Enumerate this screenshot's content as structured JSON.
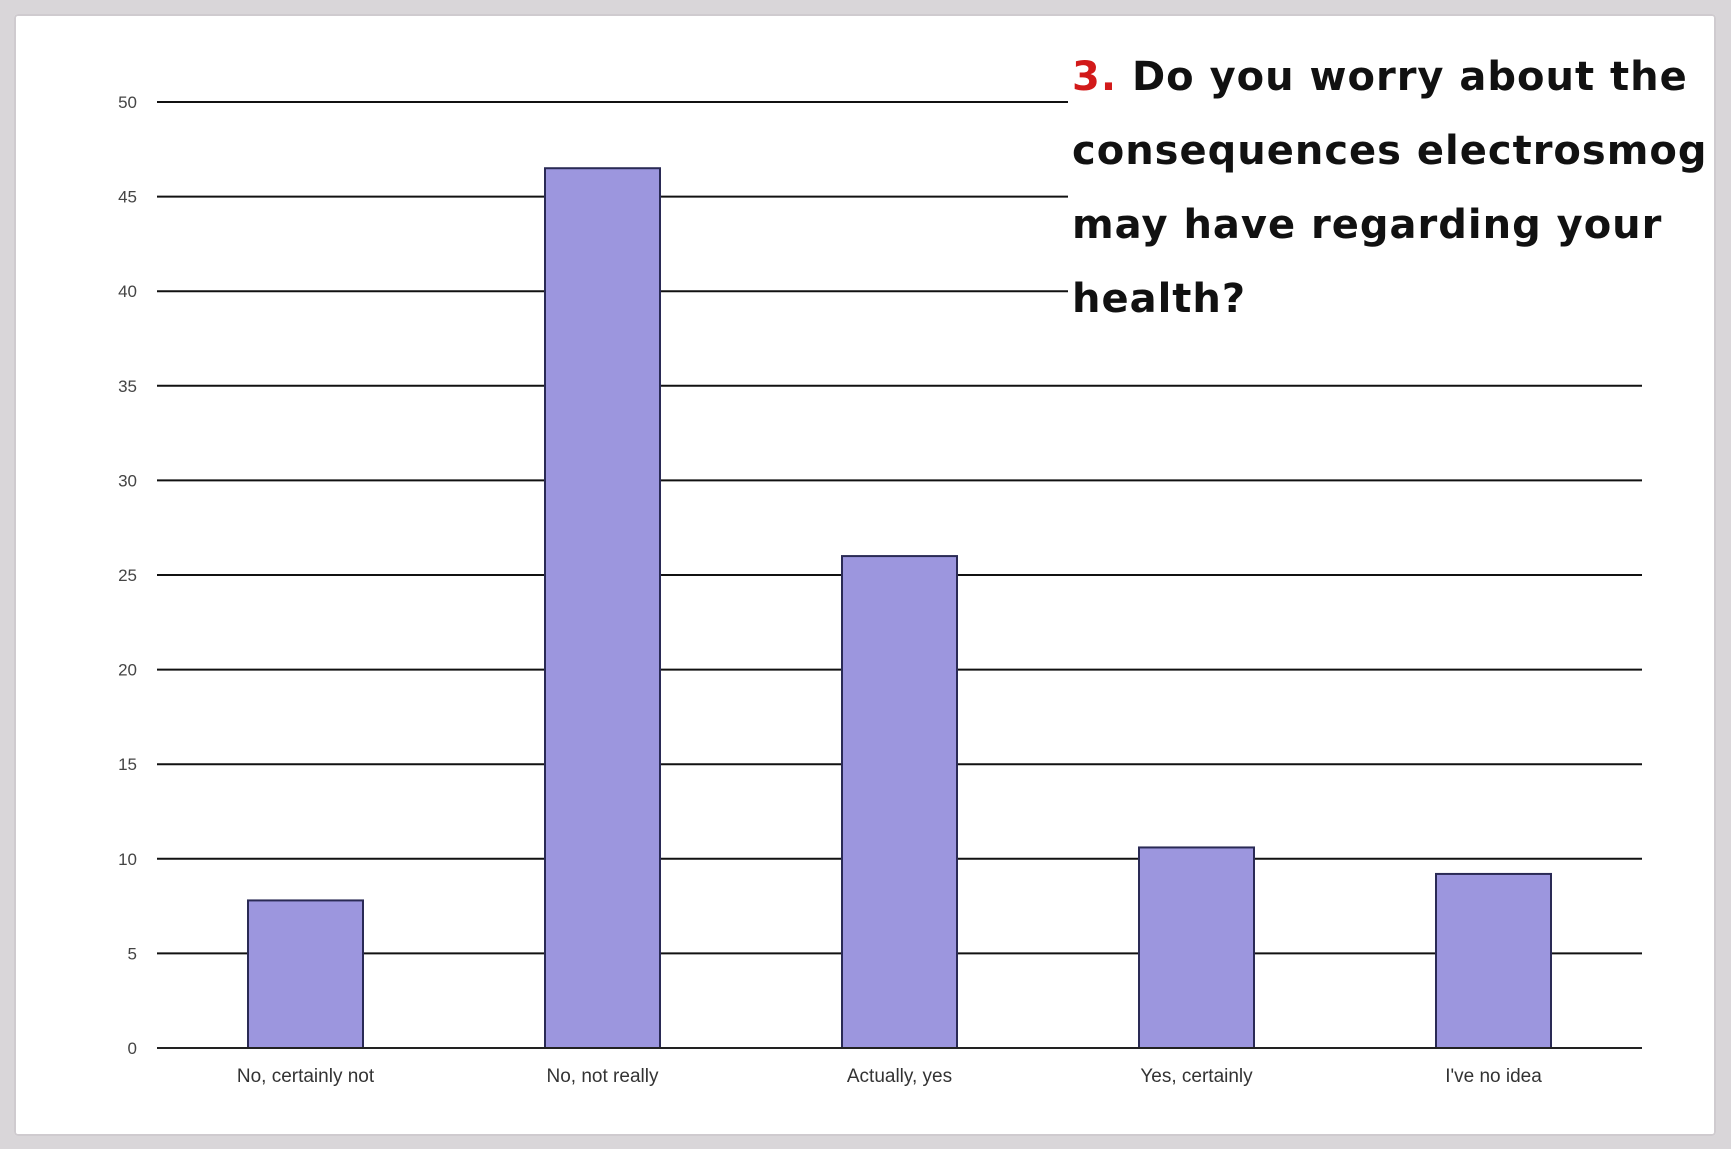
{
  "question": {
    "number": "3.",
    "text": "Do you worry about the consequences electrosmog may have regarding your health?"
  },
  "chart_data": {
    "type": "bar",
    "title": "3. Do you worry about the consequences electrosmog may have regarding your health?",
    "categories": [
      "No, certainly not",
      "No, not really",
      "Actually, yes",
      "Yes, certainly",
      "I've no idea"
    ],
    "values": [
      7.8,
      46.5,
      26.0,
      10.6,
      9.2
    ],
    "ylim": [
      0,
      50
    ],
    "yticks": [
      0,
      5,
      10,
      15,
      20,
      25,
      30,
      35,
      40,
      45,
      50
    ],
    "xlabel": "",
    "ylabel": "",
    "grid": true,
    "bar_color": "#9c96de",
    "bar_stroke": "#2a2a55"
  }
}
